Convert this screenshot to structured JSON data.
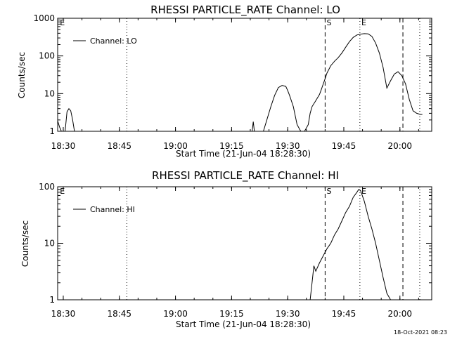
{
  "chart_data": [
    {
      "type": "line",
      "title": "RHESSI PARTICLE_RATE Channel: LO",
      "xlabel": "Start Time (21-Jun-04 18:28:30)",
      "ylabel": "Counts/sec",
      "yscale": "log",
      "ylim": [
        1,
        1000
      ],
      "xlim_minutes": [
        0,
        100
      ],
      "xticks": [
        "18:30",
        "18:45",
        "19:00",
        "19:15",
        "19:30",
        "19:45",
        "20:00"
      ],
      "yticks": [
        "1",
        "10",
        "100",
        "1000"
      ],
      "legend": "Channel: LO",
      "markers": {
        "S": "19:36",
        "E": "19:45"
      },
      "series": [
        {
          "name": "Channel: LO",
          "x": [
            0,
            0.5,
            1,
            2,
            2.5,
            3,
            3.5,
            4,
            4.5,
            5,
            52,
            52.3,
            52.6,
            53,
            55,
            57,
            58,
            59,
            60,
            61,
            61.5,
            62,
            63,
            64,
            65,
            65.5,
            66,
            67,
            67.5,
            68,
            69,
            70,
            70.5,
            71,
            71.5,
            72,
            73,
            74,
            75,
            76,
            77,
            78,
            79,
            80,
            81,
            82,
            83,
            84,
            85,
            86,
            87,
            88,
            89,
            90,
            91,
            92,
            93,
            94,
            95,
            96,
            97,
            97.5
          ],
          "y": [
            1.9,
            1.3,
            1.0,
            1.0,
            3.3,
            4.0,
            3.5,
            2.0,
            1.0,
            1.0,
            1.0,
            1.8,
            1.0,
            1.0,
            1.0,
            4.5,
            9.0,
            14.5,
            16.5,
            15.5,
            12.0,
            9.0,
            4.5,
            1.5,
            1.0,
            1.0,
            1.0,
            1.5,
            3.0,
            4.5,
            6.5,
            9.5,
            13.0,
            18.0,
            25.0,
            35.0,
            55.0,
            72.0,
            90.0,
            120.0,
            170.0,
            240.0,
            310.0,
            360.0,
            380.0,
            390.0,
            385.0,
            330.0,
            220.0,
            120.0,
            50.0,
            14.0,
            22.0,
            33.0,
            38.0,
            30.0,
            18.0,
            7.0,
            3.5,
            3.0,
            2.8,
            2.8
          ]
        }
      ]
    },
    {
      "type": "line",
      "title": "RHESSI PARTICLE_RATE Channel: HI",
      "xlabel": "Start Time (21-Jun-04 18:28:30)",
      "ylabel": "Counts/sec",
      "yscale": "log",
      "ylim": [
        1,
        100
      ],
      "xlim_minutes": [
        0,
        100
      ],
      "xticks": [
        "18:30",
        "18:45",
        "19:00",
        "19:15",
        "19:30",
        "19:45",
        "20:00"
      ],
      "yticks": [
        "1",
        "10",
        "100"
      ],
      "legend": "Channel: HI",
      "markers": {
        "E_left": "E",
        "S": "S",
        "E": "E"
      },
      "series": [
        {
          "name": "Channel: HI",
          "x": [
            67.5,
            68,
            68.5,
            69,
            70,
            71,
            72,
            73,
            74,
            75,
            76,
            77,
            78,
            79,
            80,
            80.5,
            81,
            82,
            83,
            84,
            85,
            86,
            87,
            88,
            89
          ],
          "y": [
            1.0,
            2.0,
            4.0,
            3.2,
            4.5,
            6.0,
            8.0,
            10.0,
            14.0,
            18.0,
            25.0,
            35.0,
            45.0,
            65.0,
            80.0,
            90.0,
            85.0,
            55.0,
            30.0,
            18.0,
            10.0,
            5.0,
            2.5,
            1.3,
            1.0
          ]
        }
      ]
    }
  ],
  "footer": {
    "timestamp": "18-Oct-2021 08:23"
  }
}
